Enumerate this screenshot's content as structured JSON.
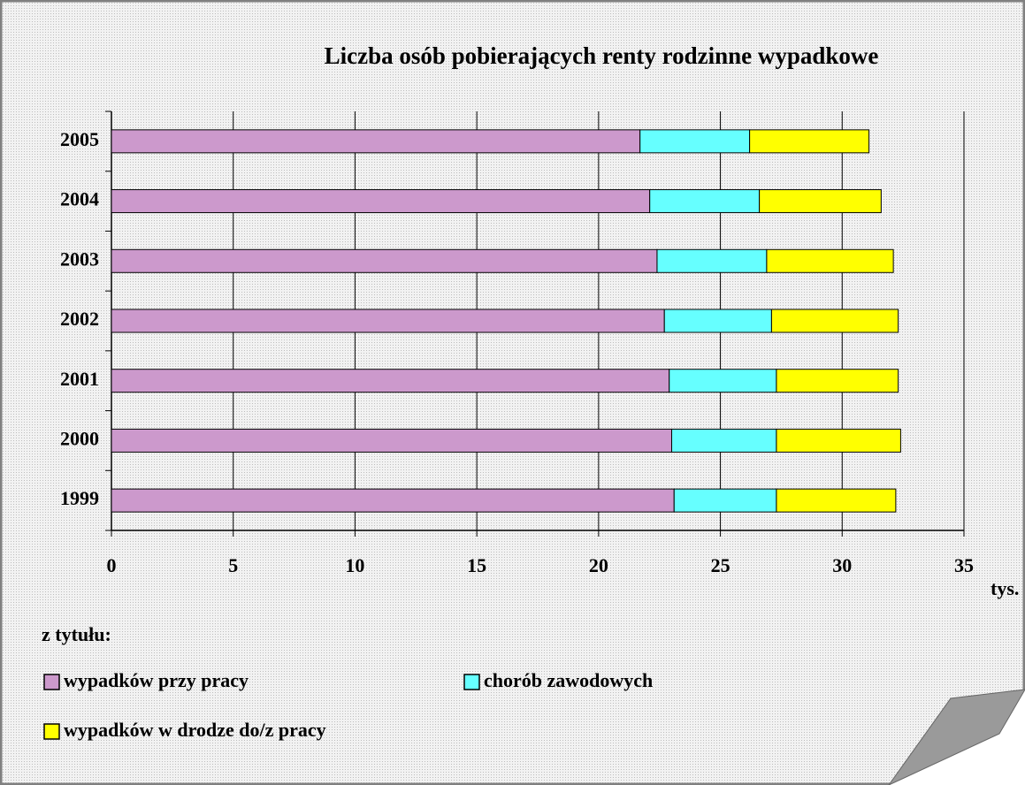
{
  "chart_data": {
    "type": "stacked-bar-horizontal",
    "title": "Liczba osób pobierających renty rodzinne wypadkowe",
    "categories": [
      "1999",
      "2000",
      "2001",
      "2002",
      "2003",
      "2004",
      "2005"
    ],
    "series": [
      {
        "name": "wypadków przy pracy",
        "color": "#cc99cc",
        "values": [
          23.1,
          23.0,
          22.9,
          22.7,
          22.4,
          22.1,
          21.7
        ]
      },
      {
        "name": "chorób zawodowych",
        "color": "#66ffff",
        "values": [
          4.2,
          4.3,
          4.4,
          4.4,
          4.5,
          4.5,
          4.5
        ]
      },
      {
        "name": "wypadków w drodze do/z pracy",
        "color": "#ffff00",
        "values": [
          4.9,
          5.1,
          5.0,
          5.2,
          5.2,
          5.0,
          4.9
        ]
      }
    ],
    "xlim": [
      0,
      35
    ],
    "xticks": [
      0,
      5,
      10,
      15,
      20,
      25,
      30,
      35
    ],
    "grid": true,
    "x_axis_label": "tys.",
    "legend_title": "z tytułu:"
  }
}
